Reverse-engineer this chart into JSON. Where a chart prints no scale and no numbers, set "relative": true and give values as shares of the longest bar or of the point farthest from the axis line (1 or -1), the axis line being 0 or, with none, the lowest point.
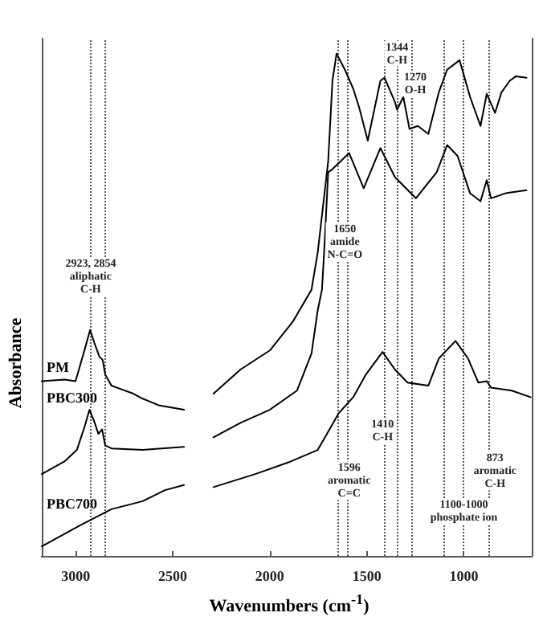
{
  "chart_data": {
    "type": "line",
    "relative": true,
    "ylabel": "Absorbance",
    "xlabel": "Wavenumbers (cm$^{-1}$)",
    "xlim": [
      3175,
      650
    ],
    "xticks": [
      3000,
      2500,
      2000,
      1500,
      1000
    ],
    "marker": "none",
    "grid": false,
    "series": [
      {
        "name": "PM",
        "color": "#000000",
        "x": [
          3175,
          3058,
          3001,
          2953,
          2926,
          2905,
          2877,
          2861,
          2848,
          2816,
          2767,
          2703,
          2655,
          2573,
          2442,
          2370,
          2290,
          2151,
          2000,
          1882,
          1785,
          1753,
          1699,
          1677,
          1656,
          1613,
          1570,
          1538,
          1495,
          1430,
          1409,
          1355,
          1344,
          1312,
          1280,
          1237,
          1183,
          1129,
          1086,
          1022,
          968,
          914,
          882,
          839,
          806,
          763,
          731,
          677
        ],
        "values": [
          0.348,
          0.351,
          0.348,
          0.412,
          0.45,
          0.425,
          0.396,
          0.39,
          0.361,
          0.339,
          0.332,
          0.323,
          0.313,
          0.3,
          0.291,
          null,
          0.323,
          0.371,
          0.409,
          0.466,
          0.53,
          0.604,
          0.786,
          0.946,
          1,
          0.968,
          0.93,
          0.891,
          0.827,
          0.946,
          0.952,
          0.904,
          0.888,
          0.914,
          0.85,
          0.856,
          0.84,
          0.923,
          0.968,
          0.987,
          0.914,
          0.856,
          0.92,
          0.882,
          0.923,
          0.946,
          0.955,
          0.952
        ]
      },
      {
        "name": "PBC300",
        "color": "#000000",
        "x": [
          3175,
          3058,
          2994,
          2953,
          2929,
          2905,
          2883,
          2864,
          2848,
          2816,
          2655,
          2557,
          2442,
          2370,
          2290,
          2151,
          2000,
          1860,
          1785,
          1753,
          1731,
          1720,
          1699,
          1677,
          1591,
          1516,
          1430,
          1355,
          1247,
          1140,
          1086,
          1032,
          968,
          914,
          882,
          860,
          785,
          677
        ],
        "values": [
          0.163,
          0.188,
          0.211,
          0.259,
          0.291,
          0.268,
          0.243,
          0.252,
          0.22,
          0.214,
          0.211,
          0.214,
          0.217,
          null,
          0.236,
          0.265,
          0.291,
          0.329,
          0.403,
          0.489,
          0.53,
          0.604,
          0.764,
          0.77,
          0.802,
          0.732,
          0.812,
          0.754,
          0.712,
          0.764,
          0.818,
          0.796,
          0.722,
          0.706,
          0.748,
          0.712,
          0.722,
          0.728
        ]
      },
      {
        "name": "PBC700",
        "color": "#000000",
        "x": [
          3175,
          2977,
          2816,
          2655,
          2540,
          2442,
          2370,
          2290,
          2075,
          1892,
          1753,
          1720,
          1645,
          1570,
          1505,
          1419,
          1355,
          1290,
          1183,
          1129,
          1043,
          978,
          925,
          882,
          860,
          753,
          656
        ],
        "values": [
          0.019,
          0.061,
          0.093,
          0.109,
          0.131,
          0.141,
          null,
          0.137,
          0.163,
          0.188,
          0.211,
          0.233,
          0.284,
          0.316,
          0.361,
          0.406,
          0.371,
          0.345,
          0.339,
          0.393,
          0.428,
          0.393,
          0.345,
          0.348,
          0.335,
          0.329,
          0.316
        ]
      }
    ],
    "ref_lines": [
      {
        "axis": "x",
        "value": 2923,
        "line_style": "dotted"
      },
      {
        "axis": "x",
        "value": 2854,
        "line_style": "dotted"
      },
      {
        "axis": "x",
        "value": 1650,
        "line_style": "dotted"
      },
      {
        "axis": "x",
        "value": 1596,
        "line_style": "dotted"
      },
      {
        "axis": "x",
        "value": 1410,
        "line_style": "dotted"
      },
      {
        "axis": "x",
        "value": 1344,
        "line_style": "dotted"
      },
      {
        "axis": "x",
        "value": 1270,
        "line_style": "dotted"
      },
      {
        "axis": "x",
        "value": 1100,
        "line_style": "dotted"
      },
      {
        "axis": "x",
        "value": 1000,
        "line_style": "dotted"
      },
      {
        "axis": "x",
        "value": 873,
        "line_style": "dotted"
      }
    ],
    "annotations": [
      {
        "text": "2923, 2854\naliphatic\nC-H",
        "x": 2923,
        "y": 0.556
      },
      {
        "text": "1344\nC-H",
        "x": 1344,
        "y": 1.0
      },
      {
        "text": "1270\nO-H",
        "x": 1250,
        "y": 0.94
      },
      {
        "text": "1650\namide\nN-C=O",
        "x": 1613,
        "y": 0.626
      },
      {
        "text": "1410\nC-H",
        "x": 1419,
        "y": 0.249
      },
      {
        "text": "1596\naromatic\nC=C",
        "x": 1591,
        "y": 0.15
      },
      {
        "text": "873\naromatic\nC-H",
        "x": 839,
        "y": 0.169
      },
      {
        "text": "1100-1000\nphosphate ion",
        "x": 1000,
        "y": 0.089
      }
    ]
  }
}
